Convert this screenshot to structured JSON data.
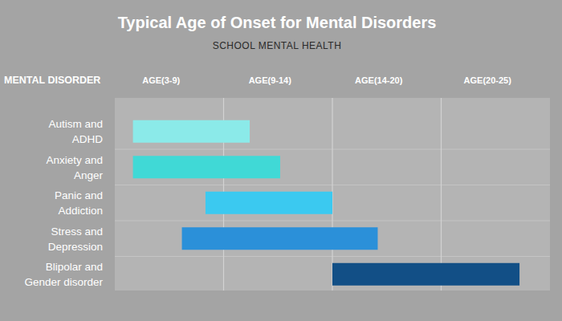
{
  "chart_data": {
    "type": "bar",
    "orientation": "horizontal",
    "title": "Typical Age of Onset for Mental Disorders",
    "subtitle": "SCHOOL MENTAL HEALTH",
    "ylabel": "MENTAL DISORDER",
    "categories": [
      "Autism and ADHD",
      "Anxiety and Anger",
      "Panic and Addiction",
      "Stress and Depression",
      "Blipolar and Gender disorder"
    ],
    "start": [
      4.0,
      4.0,
      8.0,
      6.7,
      14
    ],
    "end": [
      10.2,
      11.6,
      14,
      16.5,
      23.6
    ],
    "colors": [
      "#8beae9",
      "#40d9d6",
      "#3bc9f0",
      "#2b90d9",
      "#124f86"
    ],
    "x_bands": [
      {
        "label": "AGE(3-9)",
        "from": 3,
        "to": 9
      },
      {
        "label": "AGE(9-14)",
        "from": 9,
        "to": 14
      },
      {
        "label": "AGE(14-20)",
        "from": 14,
        "to": 20
      },
      {
        "label": "AGE(20-25)",
        "from": 20,
        "to": 25
      }
    ],
    "xlim": [
      3,
      25
    ],
    "grid": true
  }
}
